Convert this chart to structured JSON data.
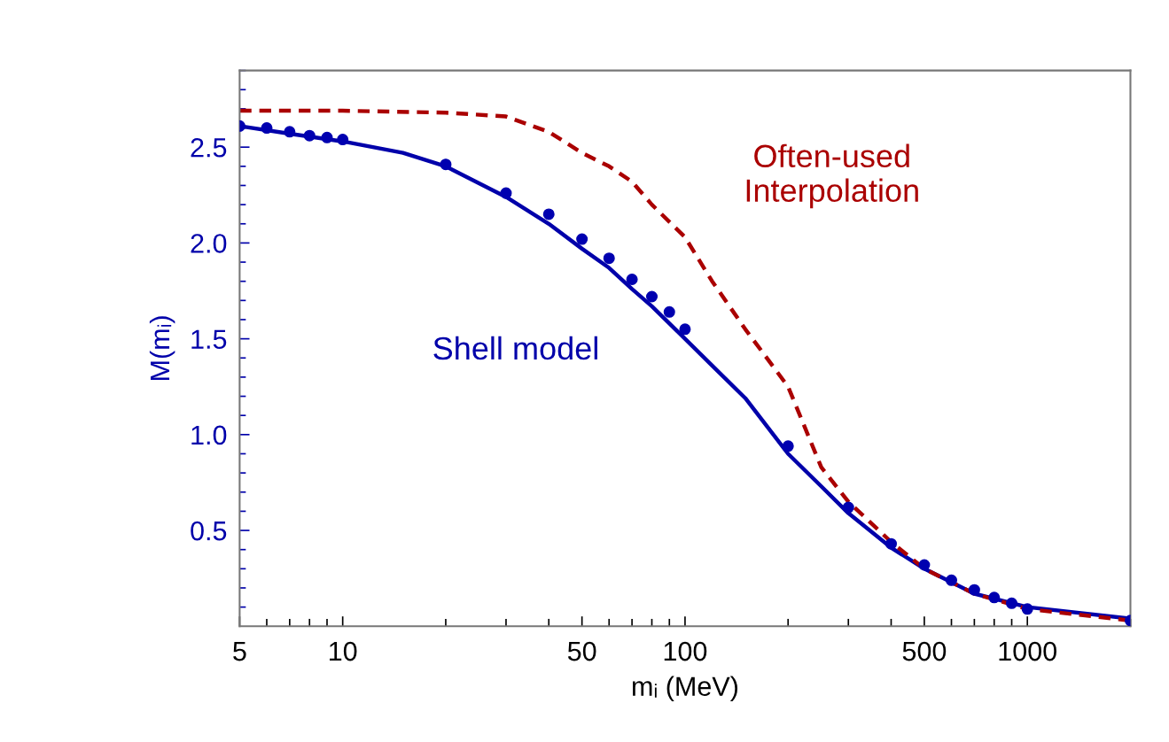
{
  "chart_data": {
    "type": "line",
    "xlabel": "mᵢ (MeV)",
    "ylabel": "M(mᵢ)",
    "log": "x",
    "xlim": [
      5,
      2000
    ],
    "ylim": [
      0,
      2.9
    ],
    "xticks": [
      5,
      {
        "value": 6,
        "label": null
      },
      {
        "value": 7,
        "label": null
      },
      {
        "value": 8,
        "label": null
      },
      {
        "value": 9,
        "label": null
      },
      10,
      {
        "value": 20,
        "label": null
      },
      {
        "value": 30,
        "label": null
      },
      {
        "value": 40,
        "label": null
      },
      50,
      {
        "value": 60,
        "label": null
      },
      {
        "value": 70,
        "label": null
      },
      {
        "value": 80,
        "label": null
      },
      {
        "value": 90,
        "label": null
      },
      100,
      {
        "value": 200,
        "label": null
      },
      {
        "value": 300,
        "label": null
      },
      {
        "value": 400,
        "label": null
      },
      500,
      {
        "value": 600,
        "label": null
      },
      {
        "value": 700,
        "label": null
      },
      {
        "value": 800,
        "label": null
      },
      {
        "value": 900,
        "label": null
      },
      1000,
      {
        "value": 2000,
        "label": null
      }
    ],
    "yticks": [
      {
        "value": 0.1,
        "label": null
      },
      {
        "value": 0.2,
        "label": null
      },
      {
        "value": 0.3,
        "label": null
      },
      {
        "value": 0.4,
        "label": null
      },
      {
        "value": 0.5,
        "label": "0.5"
      },
      {
        "value": 0.6,
        "label": null
      },
      {
        "value": 0.7,
        "label": null
      },
      {
        "value": 0.8,
        "label": null
      },
      {
        "value": 0.9,
        "label": null
      },
      {
        "value": 1.0,
        "label": "1.0"
      },
      {
        "value": 1.1,
        "label": null
      },
      {
        "value": 1.2,
        "label": null
      },
      {
        "value": 1.3,
        "label": null
      },
      {
        "value": 1.4,
        "label": null
      },
      {
        "value": 1.5,
        "label": "1.5"
      },
      {
        "value": 1.6,
        "label": null
      },
      {
        "value": 1.7,
        "label": null
      },
      {
        "value": 1.8,
        "label": null
      },
      {
        "value": 1.9,
        "label": null
      },
      {
        "value": 2.0,
        "label": "2.0"
      },
      {
        "value": 2.1,
        "label": null
      },
      {
        "value": 2.2,
        "label": null
      },
      {
        "value": 2.3,
        "label": null
      },
      {
        "value": 2.4,
        "label": null
      },
      {
        "value": 2.5,
        "label": "2.5"
      },
      {
        "value": 2.6,
        "label": null
      },
      {
        "value": 2.7,
        "label": null
      },
      {
        "value": 2.8,
        "label": null
      },
      {
        "value": 2.9,
        "label": null
      }
    ],
    "grid": false,
    "legend": false,
    "series": [
      {
        "type": "scatter",
        "marker": "circle",
        "color": "#0000b0",
        "x": [
          5,
          6,
          7,
          8,
          9,
          10,
          20,
          30,
          40,
          50,
          60,
          70,
          80,
          90,
          100,
          200,
          300,
          400,
          500,
          600,
          700,
          800,
          900,
          1000,
          2000
        ],
        "values": [
          2.61,
          2.6,
          2.58,
          2.56,
          2.55,
          2.54,
          2.41,
          2.26,
          2.15,
          2.02,
          1.92,
          1.81,
          1.72,
          1.64,
          1.55,
          0.94,
          0.62,
          0.43,
          0.32,
          0.24,
          0.19,
          0.15,
          0.12,
          0.09,
          0.03
        ]
      },
      {
        "line_style": "solid",
        "marker": "none",
        "color": "#0000aa",
        "x": [
          5,
          7,
          10,
          15,
          20,
          30,
          40,
          50,
          60,
          70,
          80,
          100,
          120,
          150,
          200,
          250,
          300,
          400,
          500,
          700,
          1000,
          2000
        ],
        "values": [
          2.61,
          2.57,
          2.53,
          2.47,
          2.4,
          2.24,
          2.1,
          1.97,
          1.87,
          1.76,
          1.67,
          1.5,
          1.36,
          1.19,
          0.9,
          0.73,
          0.59,
          0.41,
          0.3,
          0.17,
          0.1,
          0.04
        ]
      },
      {
        "line_style": "dashed",
        "marker": "none",
        "color": "#aa0000",
        "x": [
          5,
          10,
          20,
          30,
          40,
          50,
          60,
          70,
          80,
          100,
          120,
          150,
          170,
          200,
          250,
          300,
          400,
          500,
          700,
          1000,
          2000
        ],
        "values": [
          2.69,
          2.69,
          2.68,
          2.66,
          2.58,
          2.47,
          2.4,
          2.32,
          2.2,
          2.03,
          1.8,
          1.55,
          1.42,
          1.25,
          0.83,
          0.65,
          0.44,
          0.3,
          0.17,
          0.09,
          0.03
        ]
      }
    ],
    "annotations": [
      "Shell model",
      "Often-used\nInterpolation"
    ]
  }
}
